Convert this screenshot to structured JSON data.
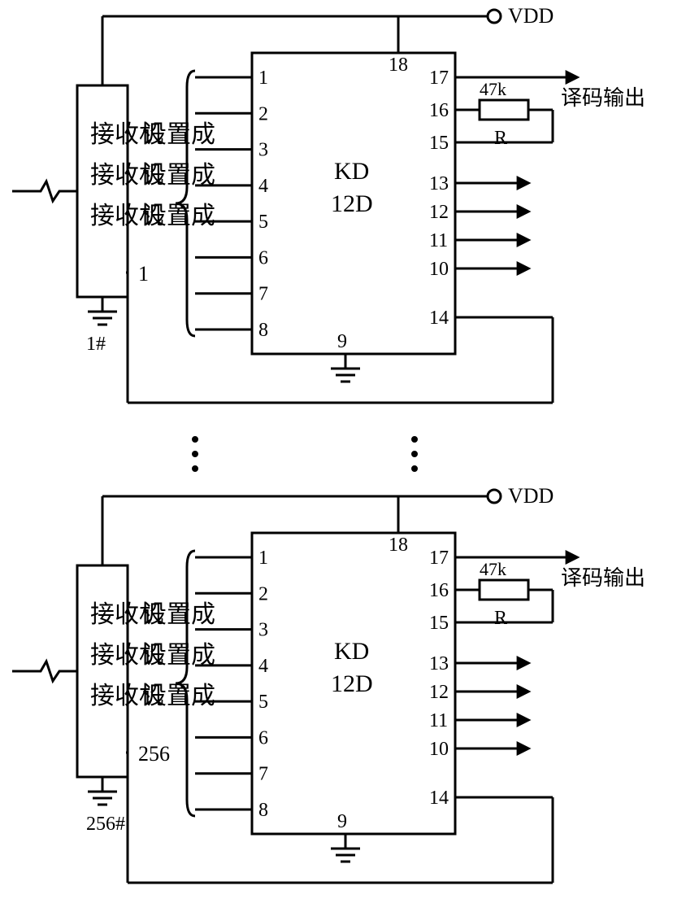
{
  "diagram": {
    "type": "circuit-schematic",
    "background_color": "#ffffff",
    "stroke_color": "#000000",
    "stroke_width": 3,
    "text_color": "#000000",
    "fontsize_pin": 24,
    "fontsize_label": 26,
    "fontsize_cn": 30,
    "chip_name": "KD",
    "chip_subname": "12D",
    "vdd": "VDD",
    "receiver_label": "接收机",
    "config_label": "设置成",
    "output_label": "译码输出",
    "resistor_value": "47k",
    "resistor_name": "R",
    "left_pins": [
      "1",
      "2",
      "3",
      "4",
      "5",
      "6",
      "7",
      "8"
    ],
    "top_pin": "18",
    "bottom_pin": "9",
    "right_pins_top": [
      "17",
      "16",
      "15"
    ],
    "right_pins_out": [
      "13",
      "12",
      "11",
      "10"
    ],
    "right_pin_bottom": "14",
    "units": {
      "1": {
        "config": "1",
        "id": "1#"
      },
      "256": {
        "config": "256",
        "id": "256#"
      }
    }
  }
}
